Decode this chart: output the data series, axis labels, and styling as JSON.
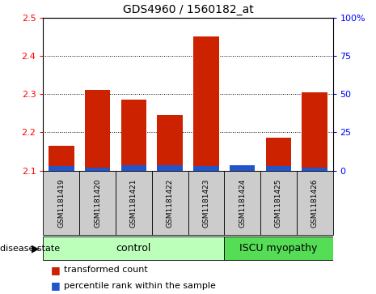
{
  "title": "GDS4960 / 1560182_at",
  "samples": [
    "GSM1181419",
    "GSM1181420",
    "GSM1181421",
    "GSM1181422",
    "GSM1181423",
    "GSM1181424",
    "GSM1181425",
    "GSM1181426"
  ],
  "red_values": [
    2.165,
    2.31,
    2.285,
    2.245,
    2.45,
    2.107,
    2.185,
    2.305
  ],
  "blue_heights": [
    0.012,
    0.008,
    0.013,
    0.013,
    0.012,
    0.013,
    0.012,
    0.008
  ],
  "y_min": 2.1,
  "y_max": 2.5,
  "y_ticks": [
    2.1,
    2.2,
    2.3,
    2.4,
    2.5
  ],
  "right_y_ticks": [
    0,
    25,
    50,
    75,
    100
  ],
  "right_y_labels": [
    "0",
    "25",
    "50",
    "75",
    "100%"
  ],
  "bar_width": 0.7,
  "bar_color_red": "#cc2200",
  "bar_color_blue": "#2255cc",
  "control_color": "#bbffbb",
  "iscu_color": "#55dd55",
  "sample_bg_color": "#cccccc",
  "disease_label_control": "control",
  "disease_label_iscu": "ISCU myopathy",
  "n_control": 5,
  "n_iscu": 3,
  "legend_red": "transformed count",
  "legend_blue": "percentile rank within the sample"
}
